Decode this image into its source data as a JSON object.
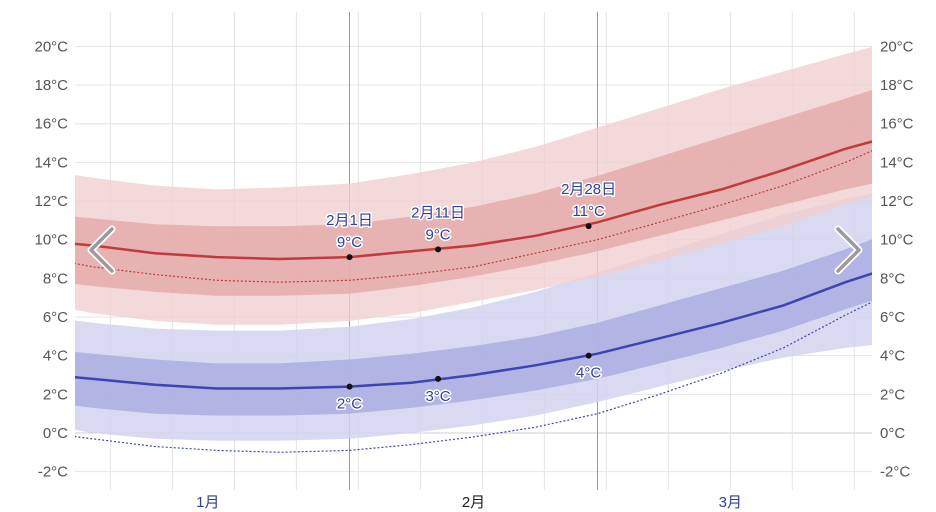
{
  "chart_data": {
    "type": "area",
    "y_unit": "°C",
    "ylim": [
      -3,
      21
    ],
    "y_ticks": [
      "20°C",
      "18°C",
      "16°C",
      "14°C",
      "12°C",
      "10°C",
      "8°C",
      "6°C",
      "4°C",
      "2°C",
      "0°C",
      "-2°C"
    ],
    "y_tick_values": [
      20,
      18,
      16,
      14,
      12,
      10,
      8,
      6,
      4,
      2,
      0,
      -2
    ],
    "x_start": "2025-01-01",
    "x_end": "2025-04-01",
    "months": [
      {
        "label": "1月",
        "center": "2025-01-16",
        "color": "#2f3f9a"
      },
      {
        "label": "2月",
        "center": "2025-02-15",
        "color": "#222222"
      },
      {
        "label": "3月",
        "center": "2025-03-16",
        "color": "#2f3f9a"
      }
    ],
    "month_boundaries": [
      "2025-02-01",
      "2025-03-01"
    ],
    "grid": true,
    "x": [
      "2024-12-27",
      "2025-01-03",
      "2025-01-10",
      "2025-01-17",
      "2025-01-24",
      "2025-02-01",
      "2025-02-08",
      "2025-02-15",
      "2025-02-22",
      "2025-03-01",
      "2025-03-08",
      "2025-03-15",
      "2025-03-22",
      "2025-03-29",
      "2025-04-02"
    ],
    "high": {
      "mean": [
        10.0,
        9.7,
        9.3,
        9.1,
        9.0,
        9.1,
        9.4,
        9.7,
        10.2,
        10.9,
        11.8,
        12.6,
        13.6,
        14.7,
        15.2
      ],
      "normal": [
        9.2,
        8.6,
        8.2,
        7.9,
        7.8,
        7.9,
        8.2,
        8.6,
        9.3,
        10.0,
        10.9,
        11.8,
        12.8,
        14.0,
        14.8
      ],
      "p25": [
        8.0,
        7.6,
        7.3,
        7.1,
        7.1,
        7.2,
        7.6,
        8.1,
        8.7,
        9.4,
        10.2,
        11.0,
        11.8,
        12.6,
        13.0
      ],
      "p75": [
        11.4,
        11.1,
        10.8,
        10.7,
        10.7,
        10.8,
        11.2,
        11.7,
        12.4,
        13.3,
        14.3,
        15.3,
        16.3,
        17.3,
        17.9
      ],
      "p10": [
        6.8,
        6.2,
        5.8,
        5.6,
        5.6,
        5.8,
        6.2,
        6.8,
        7.4,
        8.1,
        8.9,
        9.8,
        10.7,
        11.8,
        12.4
      ],
      "p90": [
        13.7,
        13.2,
        12.8,
        12.6,
        12.7,
        12.9,
        13.4,
        14.0,
        14.8,
        15.8,
        16.8,
        17.8,
        18.7,
        19.6,
        20.1
      ]
    },
    "low": {
      "mean": [
        3.1,
        2.8,
        2.5,
        2.3,
        2.3,
        2.4,
        2.6,
        3.0,
        3.5,
        4.1,
        4.9,
        5.7,
        6.6,
        7.8,
        8.4
      ],
      "normal": [
        0.1,
        -0.3,
        -0.7,
        -0.9,
        -1.0,
        -0.9,
        -0.6,
        -0.2,
        0.3,
        1.0,
        2.0,
        3.1,
        4.4,
        6.1,
        7.0
      ],
      "p25": [
        1.7,
        1.3,
        1.0,
        0.9,
        0.9,
        1.0,
        1.3,
        1.7,
        2.2,
        2.8,
        3.6,
        4.4,
        5.3,
        6.4,
        7.0
      ],
      "p75": [
        4.4,
        4.1,
        3.8,
        3.6,
        3.6,
        3.8,
        4.1,
        4.5,
        5.0,
        5.7,
        6.6,
        7.5,
        8.4,
        9.5,
        10.2
      ],
      "p10": [
        0.6,
        0.0,
        -0.3,
        -0.4,
        -0.4,
        -0.3,
        0.0,
        0.4,
        0.9,
        1.6,
        2.4,
        3.2,
        3.9,
        4.4,
        4.6
      ],
      "p90": [
        6.1,
        5.7,
        5.4,
        5.3,
        5.3,
        5.5,
        5.9,
        6.5,
        7.3,
        8.3,
        9.3,
        10.3,
        11.3,
        12.1,
        12.5
      ]
    },
    "annotations": [
      {
        "date": "2025-02-01",
        "series": "high",
        "value": 9.1,
        "labels": [
          "2月1日",
          "9°C"
        ],
        "position": "above"
      },
      {
        "date": "2025-02-11",
        "series": "high",
        "value": 9.5,
        "labels": [
          "2月11日",
          "9°C"
        ],
        "position": "above"
      },
      {
        "date": "2025-02-28",
        "series": "high",
        "value": 10.7,
        "labels": [
          "2月28日",
          "11°C"
        ],
        "position": "above"
      },
      {
        "date": "2025-02-01",
        "series": "low",
        "value": 2.4,
        "labels": [
          "2°C"
        ],
        "position": "below"
      },
      {
        "date": "2025-02-11",
        "series": "low",
        "value": 2.8,
        "labels": [
          "3°C"
        ],
        "position": "below"
      },
      {
        "date": "2025-02-28",
        "series": "low",
        "value": 4.0,
        "labels": [
          "4°C"
        ],
        "position": "below"
      }
    ],
    "colors": {
      "high_line": "#c23b3b",
      "high_band_inner": "#e3a4a4",
      "high_band_outer": "#f0cfcf",
      "low_line": "#3b45b5",
      "low_band_inner": "#a8abe0",
      "low_band_outer": "#d2d4f0",
      "annotation_text": "#2f3f9a",
      "axis_text": "#555555",
      "grid": "#e4e4e4",
      "month_line": "#999999"
    }
  },
  "nav": {
    "prev_icon": "chevron-left-icon",
    "next_icon": "chevron-right-icon"
  }
}
